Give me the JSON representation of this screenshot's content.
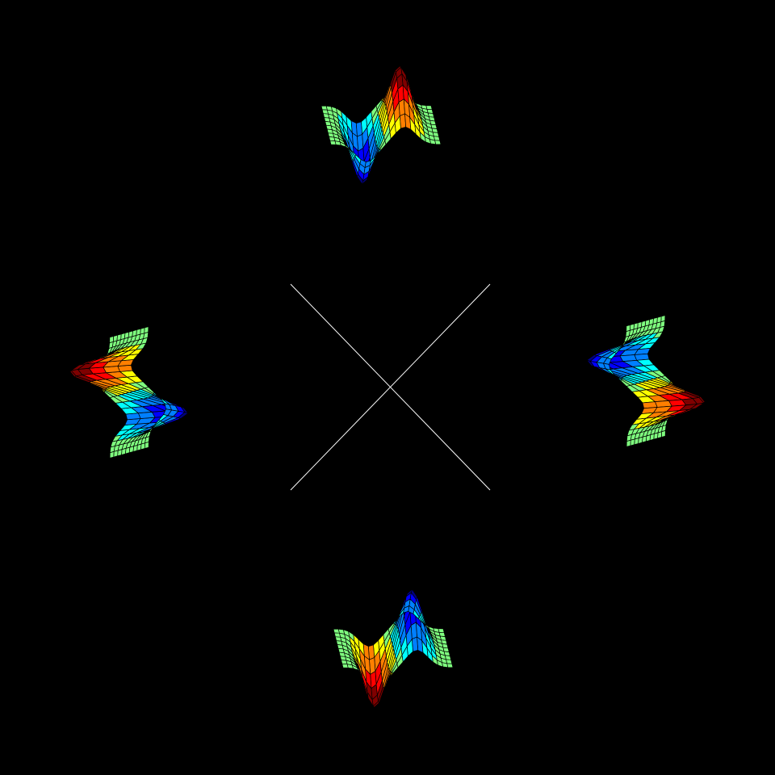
{
  "scene": {
    "background": "#000000",
    "crosshair_color": "#ffffff",
    "mesh_line_color": "#000000",
    "colormap": [
      "#00007f",
      "#0000ff",
      "#007fff",
      "#00ffff",
      "#7fff7f",
      "#ffff00",
      "#ff7f00",
      "#ff0000",
      "#7f0000"
    ],
    "views": [
      {
        "name": "top",
        "orientation": "upright"
      },
      {
        "name": "right",
        "orientation": "rotated-right"
      },
      {
        "name": "bottom",
        "orientation": "upside-down"
      },
      {
        "name": "left",
        "orientation": "rotated-left"
      }
    ]
  }
}
